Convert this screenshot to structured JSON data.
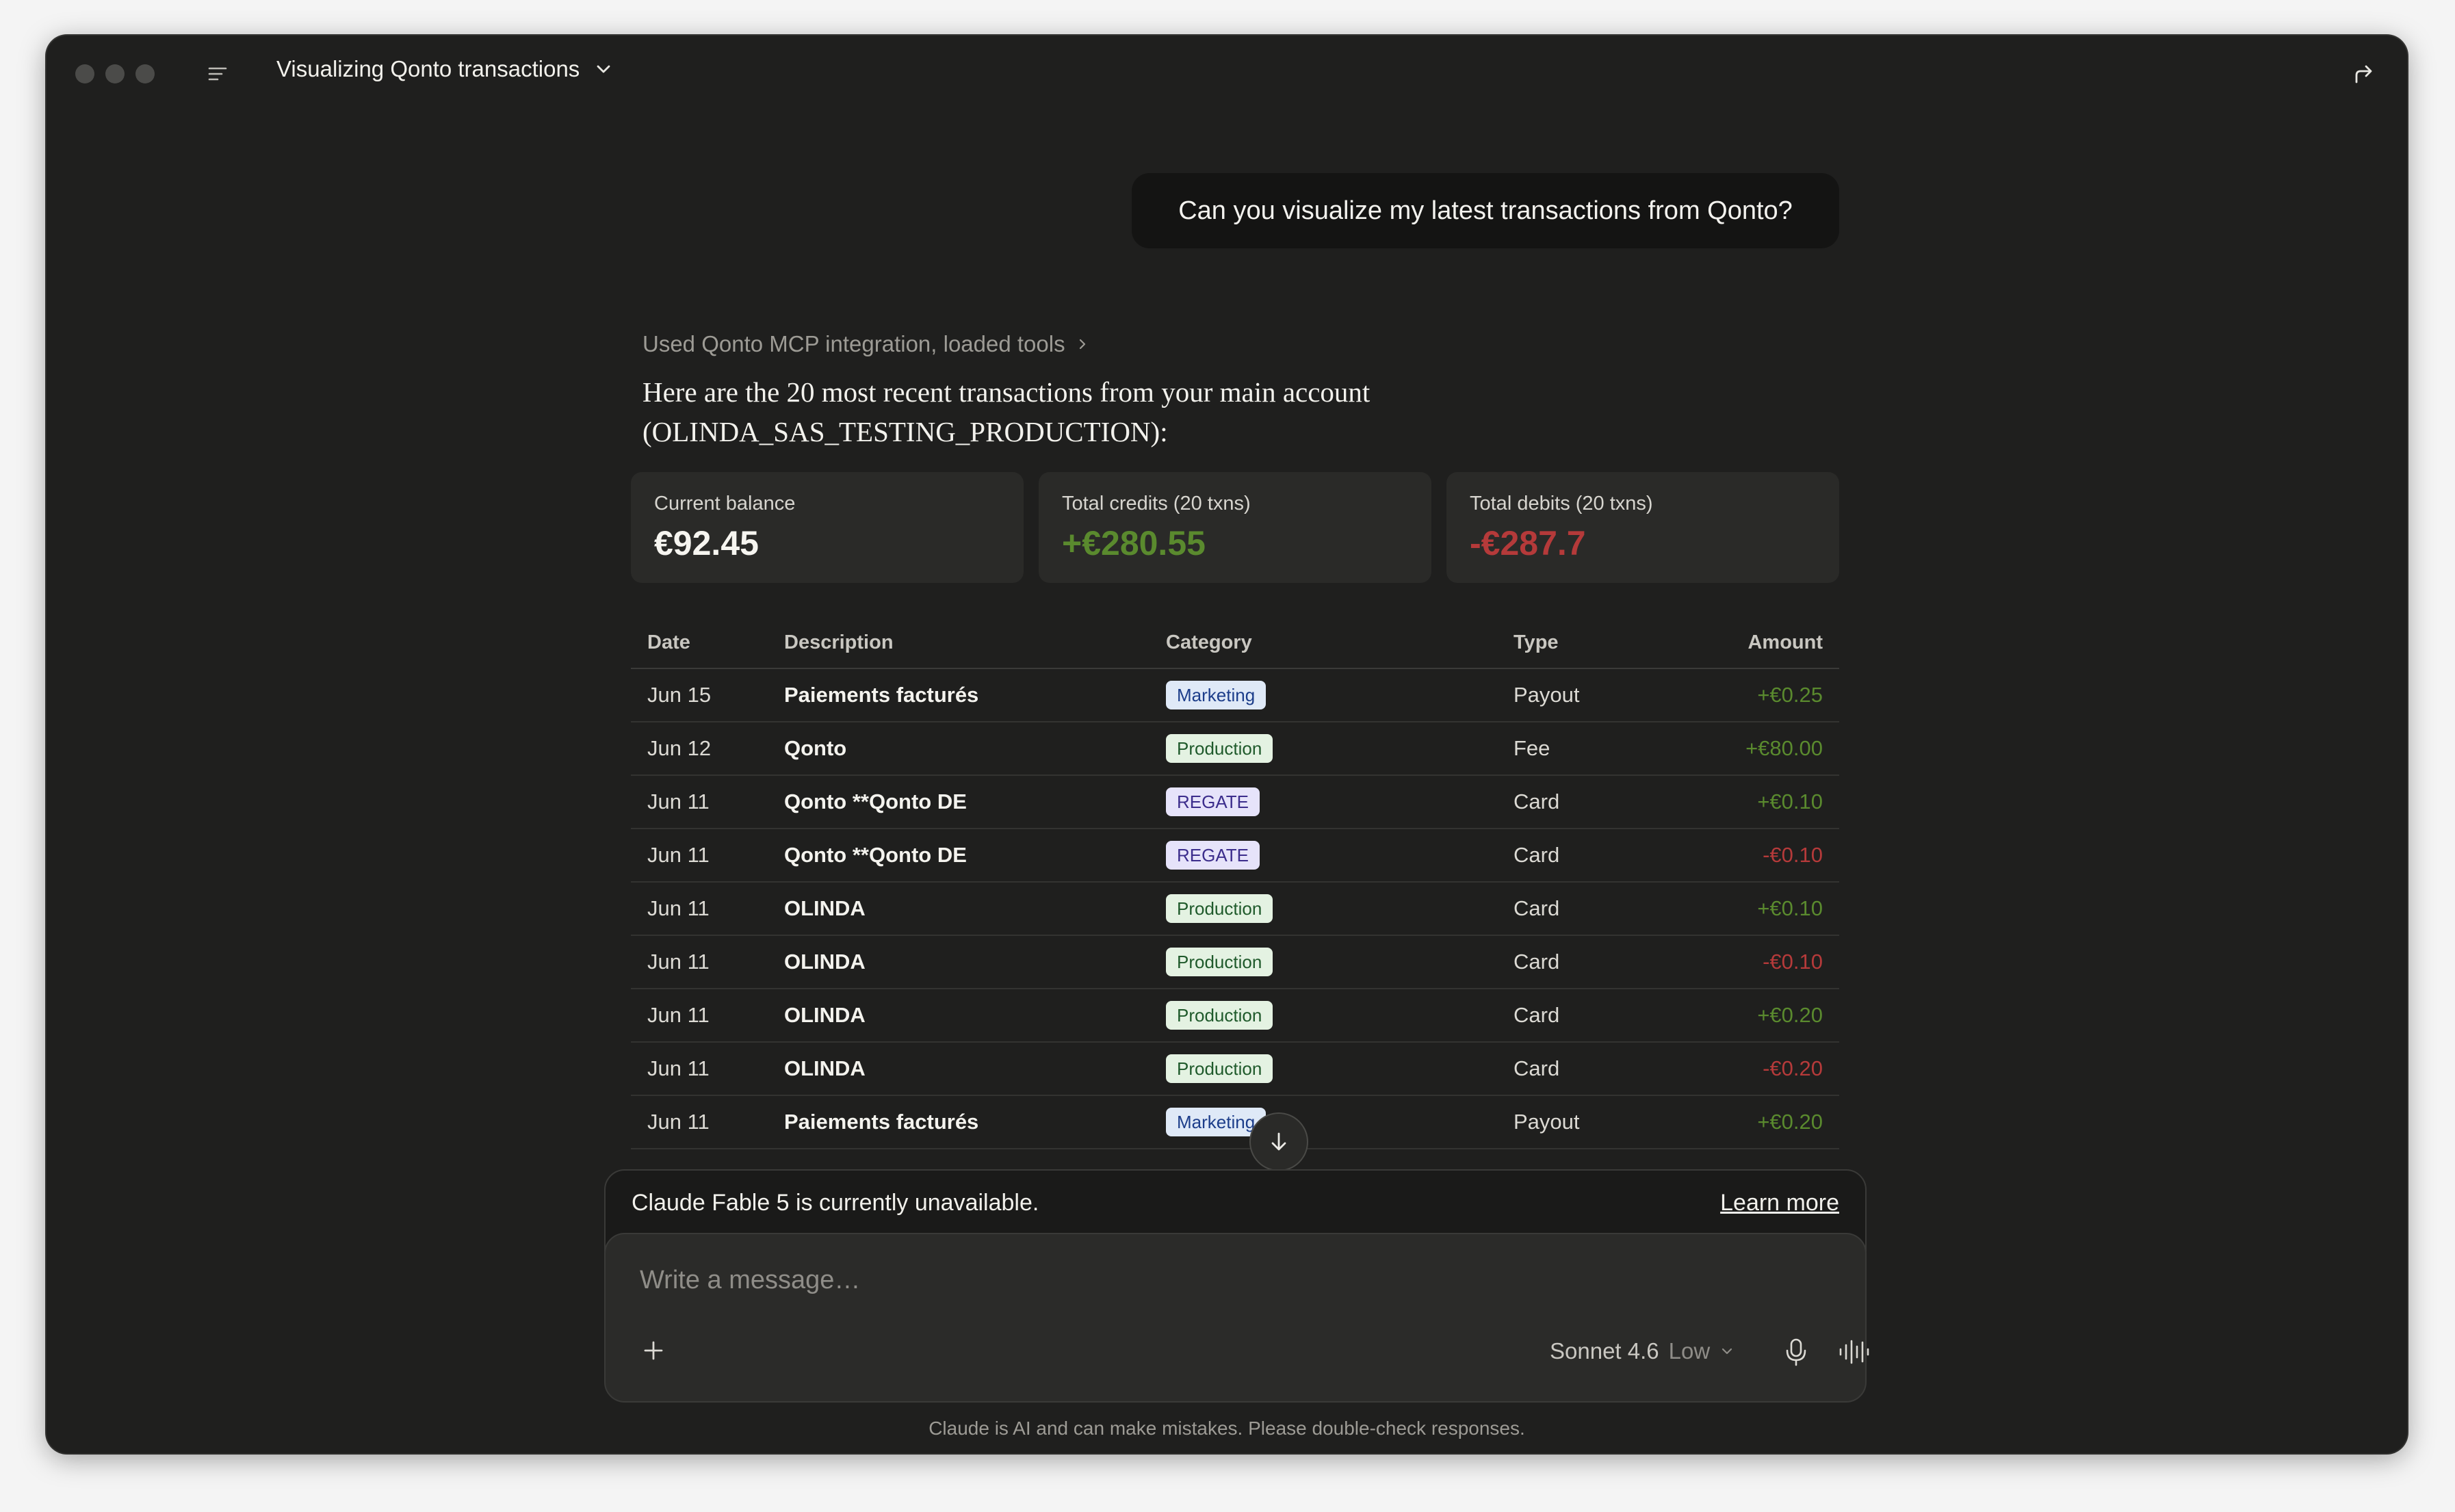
{
  "window": {
    "title": "Visualizing Qonto transactions"
  },
  "conversation": {
    "user_message": "Can you visualize my latest transactions from Qonto?",
    "tools_line": "Used Qonto MCP integration, loaded tools",
    "intro_line1": "Here are the 20 most recent transactions from your main account",
    "intro_line2": "(OLINDA_SAS_TESTING_PRODUCTION):"
  },
  "summary_cards": [
    {
      "label": "Current balance",
      "value": "€92.45"
    },
    {
      "label": "Total credits (20 txns)",
      "value": "+€280.55"
    },
    {
      "label": "Total debits (20 txns)",
      "value": "-€287.7"
    }
  ],
  "table": {
    "headers": {
      "date": "Date",
      "description": "Description",
      "category": "Category",
      "type": "Type",
      "amount": "Amount"
    },
    "rows": [
      {
        "date": "Jun 15",
        "description": "Paiements facturés",
        "category": "Marketing",
        "type": "Payout",
        "amount": "+€0.25"
      },
      {
        "date": "Jun 12",
        "description": "Qonto",
        "category": "Production",
        "type": "Fee",
        "amount": "+€80.00"
      },
      {
        "date": "Jun 11",
        "description": "Qonto **Qonto DE",
        "category": "REGATE",
        "type": "Card",
        "amount": "+€0.10"
      },
      {
        "date": "Jun 11",
        "description": "Qonto **Qonto DE",
        "category": "REGATE",
        "type": "Card",
        "amount": "-€0.10"
      },
      {
        "date": "Jun 11",
        "description": "OLINDA",
        "category": "Production",
        "type": "Card",
        "amount": "+€0.10"
      },
      {
        "date": "Jun 11",
        "description": "OLINDA",
        "category": "Production",
        "type": "Card",
        "amount": "-€0.10"
      },
      {
        "date": "Jun 11",
        "description": "OLINDA",
        "category": "Production",
        "type": "Card",
        "amount": "+€0.20"
      },
      {
        "date": "Jun 11",
        "description": "OLINDA",
        "category": "Production",
        "type": "Card",
        "amount": "-€0.20"
      },
      {
        "date": "Jun 11",
        "description": "Paiements facturés",
        "category": "Marketing",
        "type": "Payout",
        "amount": "+€0.20"
      }
    ]
  },
  "notice": {
    "message": "Claude Fable 5 is currently unavailable.",
    "link": "Learn more"
  },
  "composer": {
    "placeholder": "Write a message…",
    "model": "Sonnet 4.6",
    "effort": "Low"
  },
  "disclaimer": "Claude is AI and can make mistakes. Please double-check responses.",
  "icons": {
    "sidebar": "sidebar-toggle-icon",
    "share": "share-icon",
    "plus": "plus-icon",
    "mic": "microphone-icon",
    "voice": "voice-mode-icon",
    "scroll": "arrow-down-icon"
  },
  "colors": {
    "credit": "#5a8a2e",
    "debit": "#b53a3a",
    "background": "#1f1f1e"
  }
}
